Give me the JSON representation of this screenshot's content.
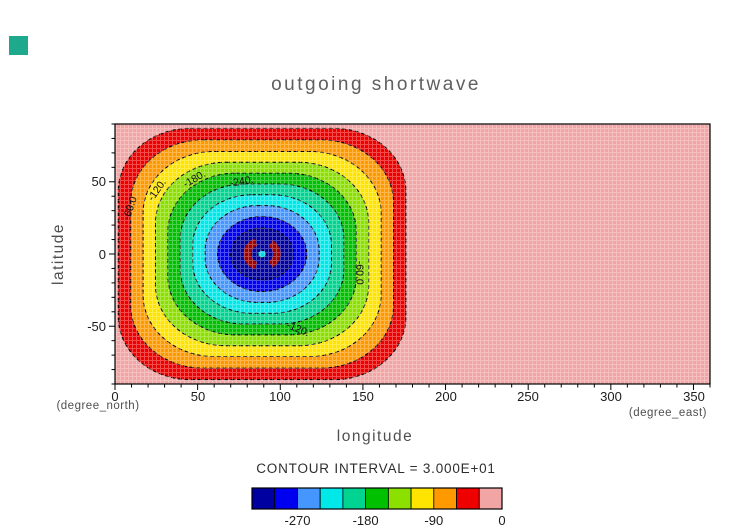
{
  "window": {
    "corner_swatch_color": "#1fa98c"
  },
  "title": "outgoing shortwave",
  "contour_note": "CONTOUR INTERVAL = 3.000E+01",
  "axes": {
    "x": {
      "label": "longitude",
      "unit": "(degree_east)",
      "min": 0,
      "max": 360,
      "major_tick_step": 50,
      "minor_tick_step": 10,
      "ticks": [
        {
          "label": "0"
        },
        {
          "label": "50"
        },
        {
          "label": "100"
        },
        {
          "label": "150"
        },
        {
          "label": "200"
        },
        {
          "label": "250"
        },
        {
          "label": "300"
        },
        {
          "label": "350"
        }
      ]
    },
    "y": {
      "label": "latitude",
      "unit": "(degree_north)",
      "min": -90,
      "max": 90,
      "major_tick_step": 50,
      "minor_tick_step": 10,
      "ticks": [
        {
          "label": "50"
        },
        {
          "label": "0"
        },
        {
          "label": "-50"
        }
      ]
    }
  },
  "chart_data": {
    "type": "heatmap",
    "subtype": "filled_contour",
    "title": "outgoing shortwave",
    "xlabel": "longitude",
    "ylabel": "latitude",
    "x_range": [
      0,
      360
    ],
    "y_range": [
      -90,
      90
    ],
    "contour_interval": 30,
    "levels": [
      -300,
      -270,
      -240,
      -210,
      -180,
      -150,
      -120,
      -90,
      -60,
      -30,
      0
    ],
    "value_range_estimate": [
      -310,
      0
    ],
    "background_color": "#f1a5a5",
    "background_band": [
      -30,
      0
    ],
    "grid": true,
    "legend_position": "bottom",
    "center": {
      "lon": 89,
      "lat": 0
    },
    "rings": [
      {
        "level": -30,
        "half_lon": 87,
        "half_lat": 87,
        "roundness": 0.5,
        "fill": "#ee0000"
      },
      {
        "level": -60,
        "half_lon": 79.5,
        "half_lat": 79,
        "roundness": 0.55,
        "fill": "#ff9900"
      },
      {
        "level": -90,
        "half_lon": 72,
        "half_lat": 71,
        "roundness": 0.6,
        "fill": "#ffe400"
      },
      {
        "level": -120,
        "half_lon": 64.5,
        "half_lat": 63.5,
        "roundness": 0.66,
        "fill": "#8ce000"
      },
      {
        "level": -150,
        "half_lon": 57,
        "half_lat": 56,
        "roundness": 0.72,
        "fill": "#00c000"
      },
      {
        "level": -180,
        "half_lon": 49.5,
        "half_lat": 48.5,
        "roundness": 0.78,
        "fill": "#00d490"
      },
      {
        "level": -210,
        "half_lon": 42,
        "half_lat": 41,
        "roundness": 0.85,
        "fill": "#00e8e8"
      },
      {
        "level": -240,
        "half_lon": 34.5,
        "half_lat": 33.5,
        "roundness": 0.92,
        "fill": "#4696ff"
      },
      {
        "level": -270,
        "half_lon": 27,
        "half_lat": 26,
        "roundness": 1.0,
        "fill": "#0000f0"
      },
      {
        "level": -300,
        "half_lon": 19,
        "half_lat": 18,
        "roundness": 1.0,
        "fill": "#0000a0"
      }
    ],
    "inner_features": {
      "crescent_color": "#a00000",
      "crescent_radius_deg": 9,
      "center_dot_color": "#00d8e8"
    },
    "contour_labels": [
      {
        "text": "-60.0",
        "lon": 11,
        "lat": 31,
        "rotate": -72
      },
      {
        "text": "-120.",
        "lon": 27,
        "lat": 43,
        "rotate": -55
      },
      {
        "text": "-180.",
        "lon": 49,
        "lat": 50,
        "rotate": -30
      },
      {
        "text": "-240.",
        "lon": 77,
        "lat": 48,
        "rotate": -10
      },
      {
        "text": "-60.0",
        "lon": 146,
        "lat": -13,
        "rotate": 90
      },
      {
        "text": "-120.",
        "lon": 110,
        "lat": -54,
        "rotate": 22
      }
    ],
    "colorbar": {
      "cells": [
        "#0000a0",
        "#0000f0",
        "#4696ff",
        "#00e8e8",
        "#00d490",
        "#00c000",
        "#8ce000",
        "#ffe400",
        "#ff9900",
        "#ee0000",
        "#f1a5a5"
      ],
      "labels": [
        {
          "text": "-270",
          "boundary_index": 2
        },
        {
          "text": "-180",
          "boundary_index": 5
        },
        {
          "text": "-90",
          "boundary_index": 8
        },
        {
          "text": "0",
          "boundary_index": 11
        }
      ]
    }
  }
}
